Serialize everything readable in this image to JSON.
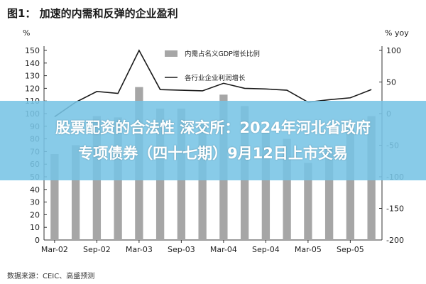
{
  "figure": {
    "title": "图1：  加速的内需和反弹的企业盈利",
    "source": "数据来源：CEIC、高盛预测"
  },
  "banner": {
    "line1": "股票配资的合法性 深交所：2024年河北省政府",
    "line2": "专项债券（四十七期）9月12日上市交易"
  },
  "colors": {
    "bar": "#a6a6a6",
    "line": "#1a1a1a",
    "banner": "#78c4e5",
    "axis": "#333333"
  },
  "chart_data": {
    "type": "bar+line",
    "left_unit": "%",
    "right_unit": "% yoy",
    "left_ylim": [
      0,
      150
    ],
    "left_ticks": [
      0,
      10,
      20,
      30,
      40,
      50,
      60,
      70,
      80,
      90,
      100,
      110,
      120,
      130,
      140,
      150
    ],
    "right_ylim": [
      -200,
      100
    ],
    "right_ticks": [
      -200,
      -150,
      -100,
      -50,
      0,
      50,
      100
    ],
    "x_tick_labels": [
      "Mar-02",
      "Sep-02",
      "Mar-03",
      "Sep-03",
      "Mar-04",
      "Sep-04",
      "Mar-05",
      "Sep-05"
    ],
    "categories": [
      "Mar-02",
      "Jun-02",
      "Sep-02",
      "Dec-02",
      "Mar-03",
      "Jun-03",
      "Sep-03",
      "Dec-03",
      "Mar-04",
      "Jun-04",
      "Sep-04",
      "Dec-04",
      "Mar-05",
      "Jun-05",
      "Sep-05",
      "Dec-05"
    ],
    "series": [
      {
        "name": "内需占名义GDP增长比例",
        "kind": "bar",
        "axis": "left",
        "values": [
          68,
          75,
          98,
          97,
          121,
          104,
          104,
          92,
          115,
          106,
          86,
          80,
          61,
          73,
          89,
          98
        ]
      },
      {
        "name": "各行业企业利润增长",
        "kind": "line",
        "axis": "right",
        "values": [
          -5,
          18,
          35,
          32,
          100,
          38,
          37,
          36,
          48,
          40,
          39,
          37,
          18,
          22,
          25,
          38
        ]
      }
    ],
    "legend_position": "top-center",
    "grid": false
  }
}
